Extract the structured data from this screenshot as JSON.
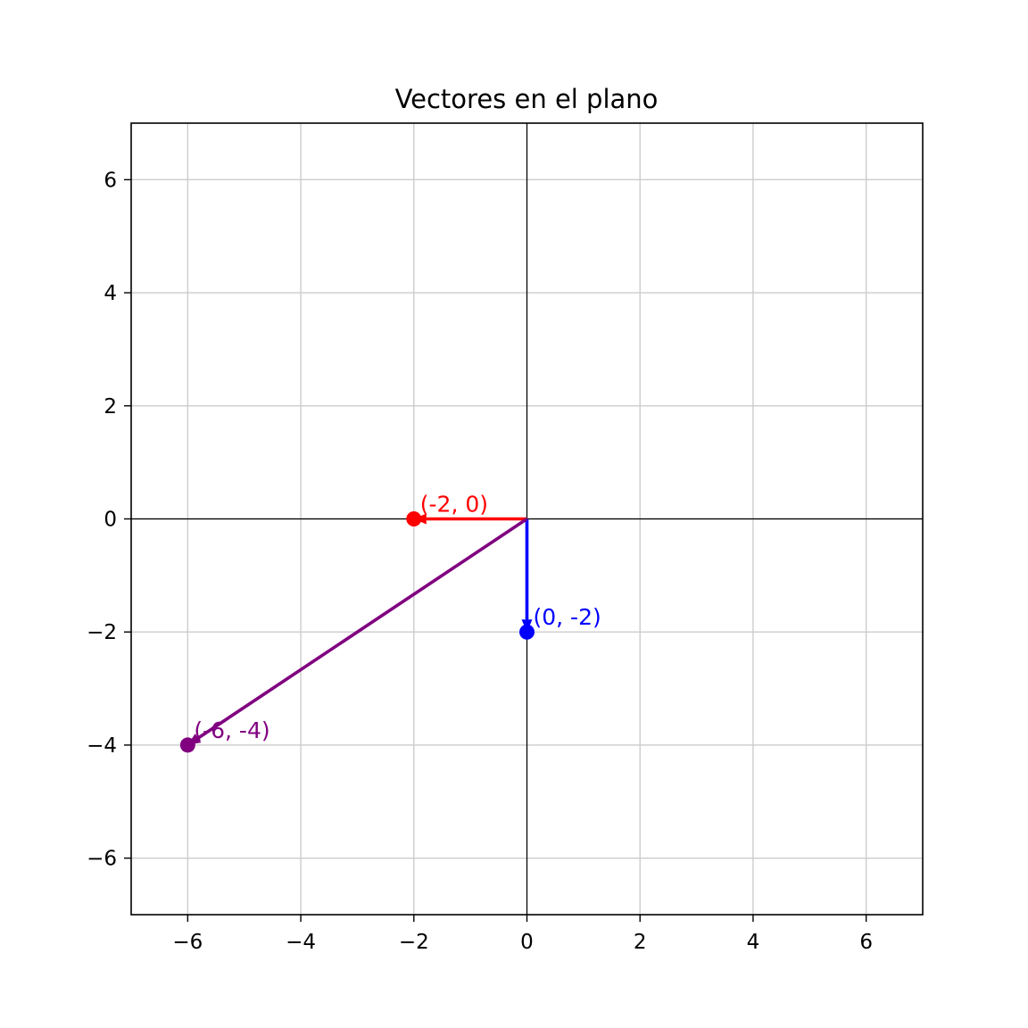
{
  "chart_data": {
    "type": "vector",
    "title": "Vectores en el plano",
    "xlabel": "",
    "ylabel": "",
    "xlim": [
      -7,
      7
    ],
    "ylim": [
      -7,
      7
    ],
    "xticks": [
      -6,
      -4,
      -2,
      0,
      2,
      4,
      6
    ],
    "yticks": [
      -6,
      -4,
      -2,
      0,
      2,
      4,
      6
    ],
    "grid": true,
    "axes_lines_at_origin": true,
    "origin": [
      0,
      0
    ],
    "vectors": [
      {
        "x": -2,
        "y": 0,
        "label": "(-2, 0)",
        "color": "#ff0000"
      },
      {
        "x": 0,
        "y": -2,
        "label": "(0, -2)",
        "color": "#0000ff"
      },
      {
        "x": -6,
        "y": -4,
        "label": "(-6, -4)",
        "color": "#800080"
      }
    ]
  }
}
